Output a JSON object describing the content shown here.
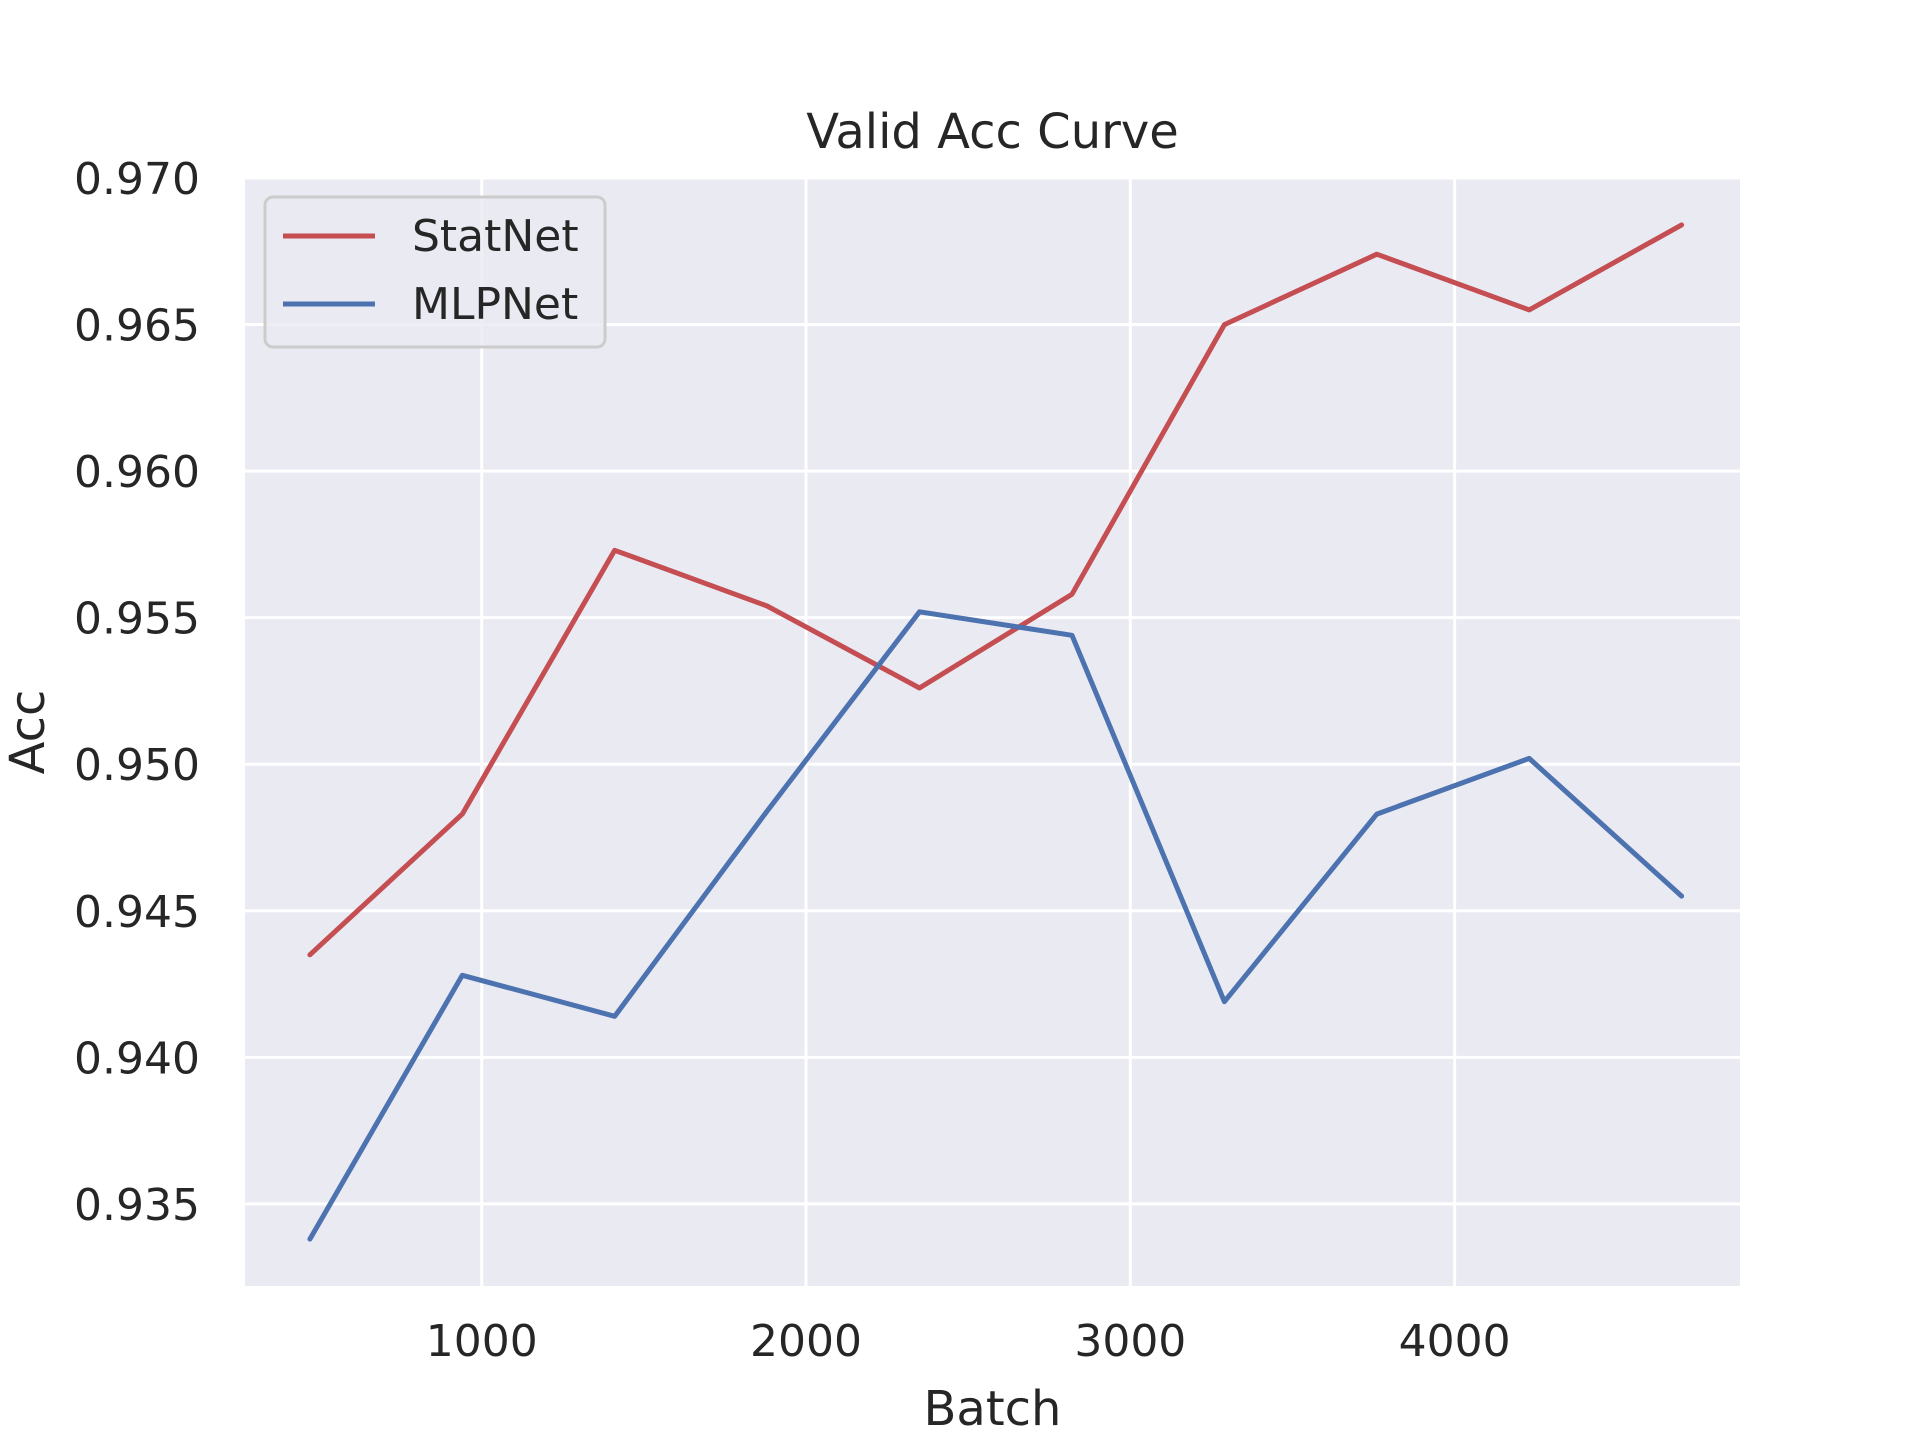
{
  "chart_data": {
    "type": "line",
    "title": "Valid Acc Curve",
    "xlabel": "Batch",
    "ylabel": "Acc",
    "x": [
      470,
      940,
      1410,
      1880,
      2350,
      2820,
      3290,
      3760,
      4230,
      4700
    ],
    "series": [
      {
        "name": "StatNet",
        "color": "#c44e52",
        "values": [
          0.9435,
          0.9483,
          0.9573,
          0.9554,
          0.9526,
          0.9558,
          0.965,
          0.9674,
          0.9655,
          0.9684
        ]
      },
      {
        "name": "MLPNet",
        "color": "#4c72b0",
        "values": [
          0.9338,
          0.9428,
          0.9414,
          0.9484,
          0.9552,
          0.9544,
          0.9419,
          0.9483,
          0.9502,
          0.9455
        ]
      }
    ],
    "xlim": [
      270,
      4880
    ],
    "ylim": [
      0.9322,
      0.97
    ],
    "xticks": [
      1000,
      2000,
      3000,
      4000
    ],
    "xtick_labels": [
      "1000",
      "2000",
      "3000",
      "4000"
    ],
    "yticks": [
      0.935,
      0.94,
      0.945,
      0.95,
      0.955,
      0.96,
      0.965,
      0.97
    ],
    "ytick_labels": [
      "0.935",
      "0.940",
      "0.945",
      "0.950",
      "0.955",
      "0.960",
      "0.965",
      "0.970"
    ],
    "grid": true,
    "legend_position": "top-left",
    "background_color": "#eaeaf2"
  }
}
